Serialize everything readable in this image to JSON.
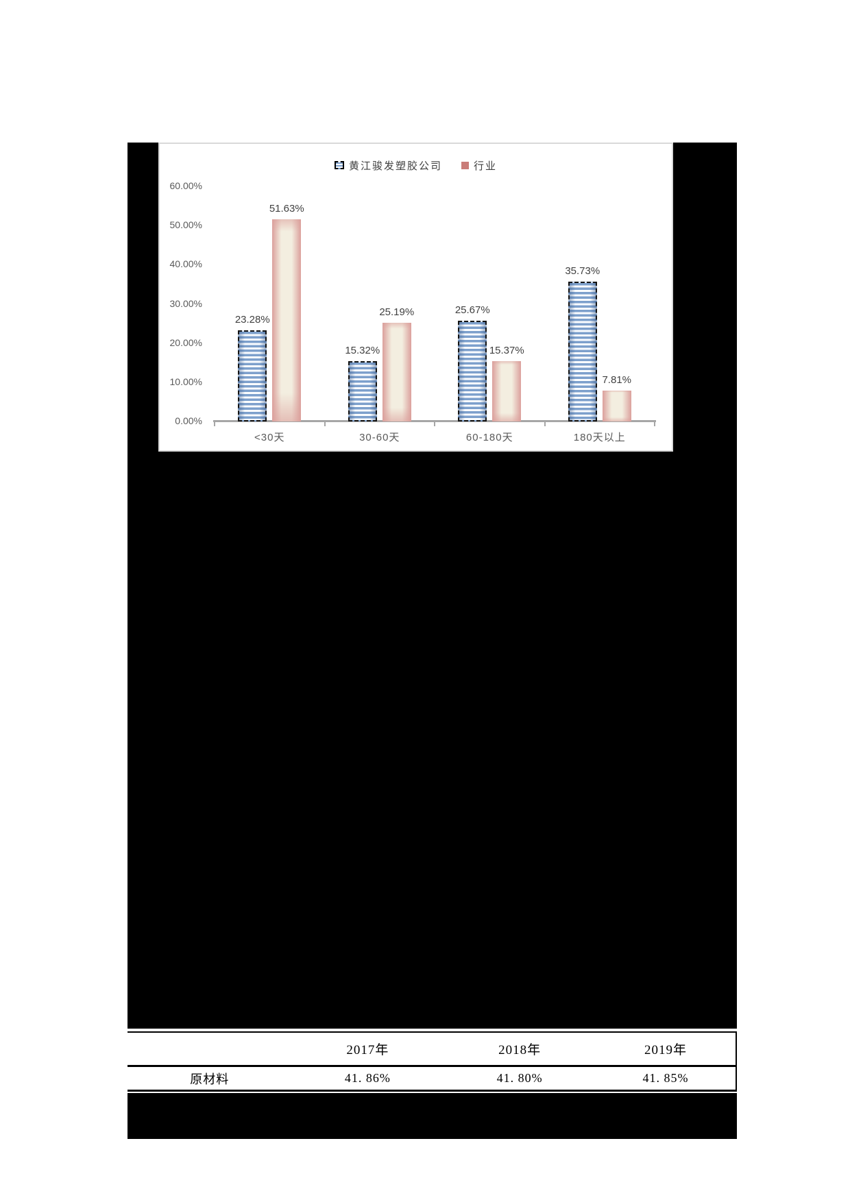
{
  "chart_data": {
    "type": "bar",
    "title": "",
    "categories": [
      "<30天",
      "30-60天",
      "60-180天",
      "180天以上"
    ],
    "series": [
      {
        "name": "黄江骏发塑胶公司",
        "values": [
          23.28,
          15.32,
          25.67,
          35.73
        ],
        "labels": [
          "23.28%",
          "15.32%",
          "25.67%",
          "35.73%"
        ]
      },
      {
        "name": "行业",
        "values": [
          51.63,
          25.19,
          15.37,
          7.81
        ],
        "labels": [
          "51.63%",
          "25.19%",
          "15.37%",
          "7.81%"
        ]
      }
    ],
    "y_ticks": [
      "60.00%",
      "50.00%",
      "40.00%",
      "30.00%",
      "20.00%",
      "10.00%",
      "0.00%"
    ],
    "ylim": [
      0,
      60
    ],
    "xlabel": "",
    "ylabel": "",
    "grid": false,
    "legend_position": "top"
  },
  "colors": {
    "company_stripe": "#7da0cc",
    "company_border": "#141414",
    "industry_edge": "#dba09c",
    "industry_center": "#f3eee0",
    "legend_industry_swatch": "#c97c78",
    "axis_line": "#a6a6a6",
    "axis_text": "#595959",
    "value_text": "#404040",
    "panel_border": "#d9d9d9",
    "redaction": "#000000"
  },
  "table": {
    "header": [
      "",
      "2017年",
      "2018年",
      "2019年"
    ],
    "rows": [
      [
        "原材料",
        "41. 86%",
        "41. 80%",
        "41. 85%"
      ]
    ]
  }
}
